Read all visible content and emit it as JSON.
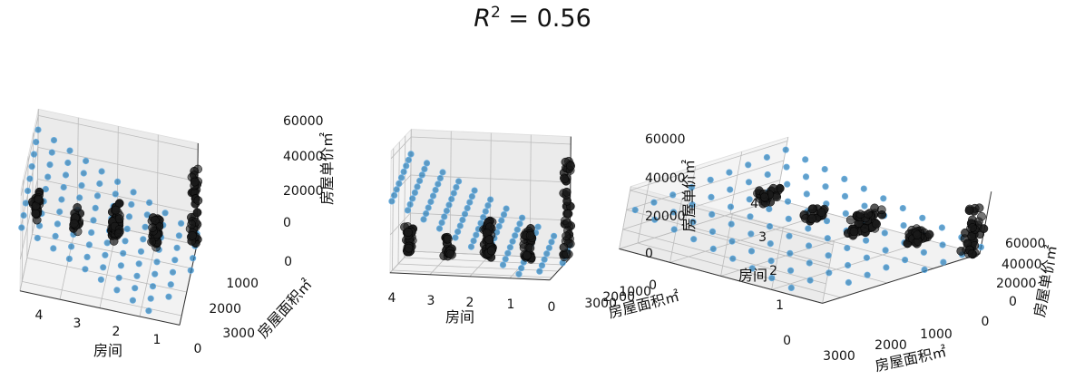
{
  "title": {
    "r": "R",
    "sup": "2",
    "rest": " = 0.56"
  },
  "colors": {
    "plane_points": "#1f77b4",
    "observations": "#1a1a1a",
    "grid": "#bbbbbb",
    "pane": "#eeeeee"
  },
  "chart_data": [
    {
      "type": "scatter",
      "view": "left",
      "xlabel": "房间",
      "ylabel": "房屋面积㎡",
      "zlabel": "房屋单价㎡",
      "x_ticks": [
        "4",
        "3",
        "2",
        "1",
        "0"
      ],
      "y_ticks": [
        "0",
        "1000",
        "2000",
        "3000"
      ],
      "z_ticks": [
        "0",
        "20000",
        "40000",
        "60000"
      ],
      "xlim": [
        0,
        4
      ],
      "ylim": [
        0,
        3000
      ],
      "zlim": [
        0,
        60000
      ]
    },
    {
      "type": "scatter",
      "view": "middle",
      "xlabel": "房间",
      "ylabel": "房屋面积㎡",
      "zlabel": "房屋单价㎡",
      "x_ticks": [
        "4",
        "3",
        "2",
        "1",
        "0"
      ],
      "y_ticks": [
        "0",
        "1000",
        "2000",
        "3000"
      ],
      "z_ticks": [
        "0",
        "20000",
        "40000",
        "60000"
      ],
      "xlim": [
        0,
        4
      ],
      "ylim": [
        0,
        3000
      ],
      "zlim": [
        0,
        60000
      ]
    },
    {
      "type": "scatter",
      "view": "right",
      "xlabel": "房间",
      "ylabel": "房屋面积㎡",
      "zlabel": "房屋单价㎡",
      "x_ticks": [
        "0",
        "1",
        "2",
        "3",
        "4"
      ],
      "y_ticks": [
        "3000",
        "2000",
        "1000",
        "0"
      ],
      "z_ticks": [
        "0",
        "20000",
        "40000",
        "60000"
      ],
      "xlim": [
        0,
        4
      ],
      "ylim": [
        0,
        3000
      ],
      "zlim": [
        0,
        60000
      ]
    }
  ]
}
